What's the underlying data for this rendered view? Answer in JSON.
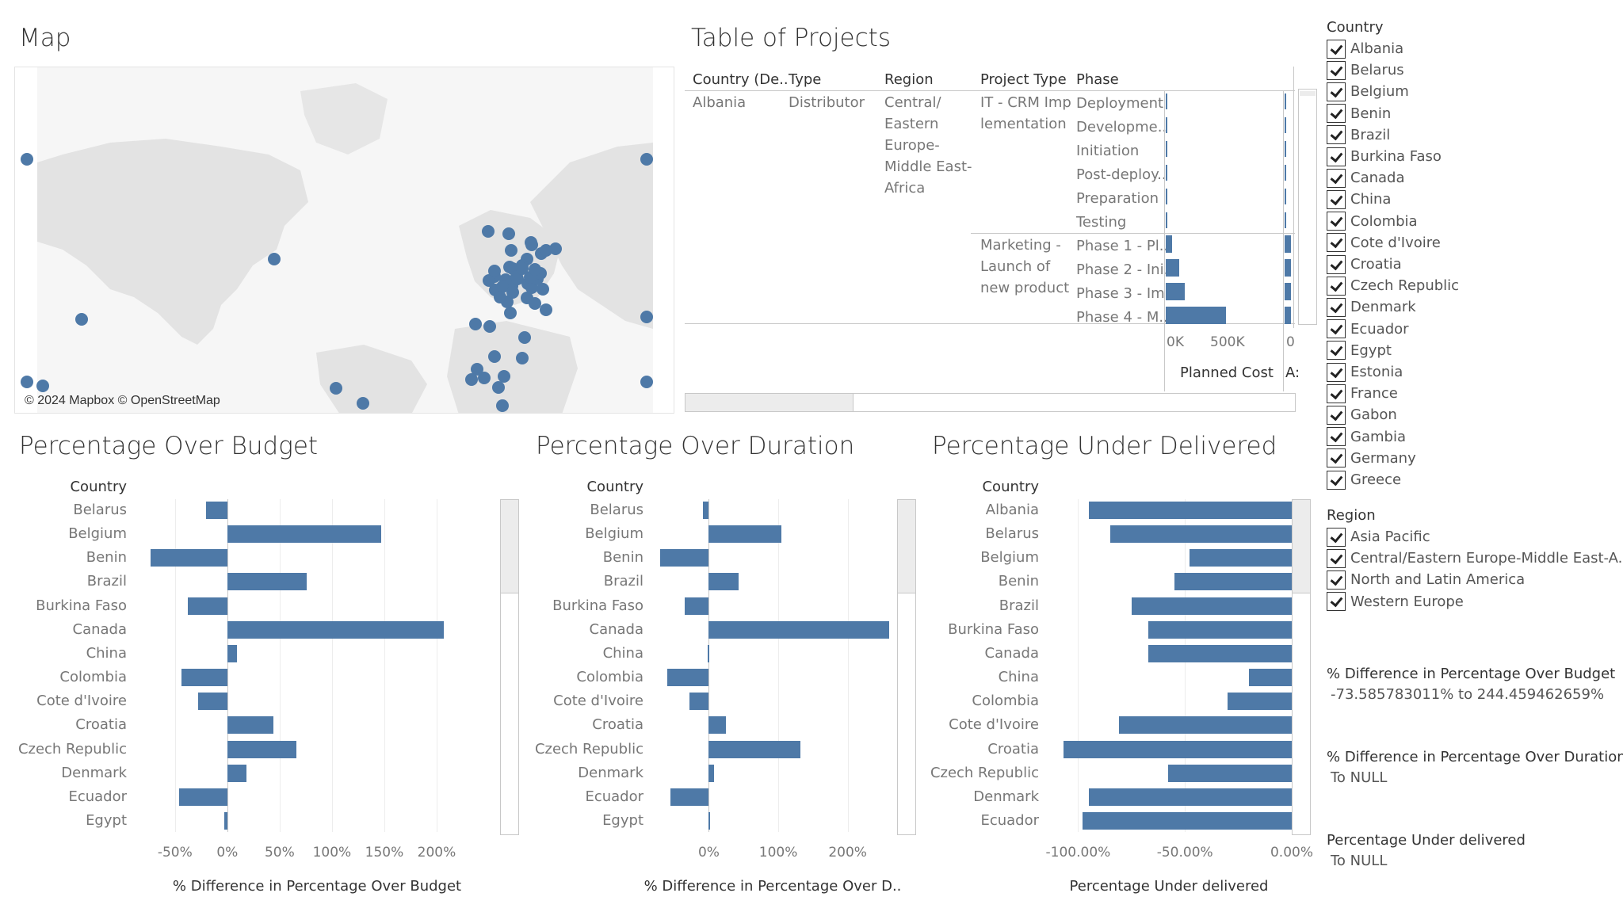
{
  "map": {
    "title": "Map",
    "attribution": "© 2024 Mapbox © OpenStreetMap",
    "point_color": "#4e79a7"
  },
  "table": {
    "title": "Table of Projects",
    "headers": [
      "Country (De..",
      "Type",
      "Region",
      "Project Type",
      "Phase"
    ],
    "country": "Albania",
    "type": "Distributor",
    "region_lines": [
      "Central/",
      "Eastern",
      "Europe-",
      "Middle East-",
      "Africa"
    ],
    "project_types": [
      {
        "lines": [
          "IT -  CRM Imp",
          "lementation"
        ],
        "phases": [
          "Deployment",
          "Developme..",
          "Initiation",
          "Post-deploy..",
          "Preparation",
          "Testing"
        ]
      },
      {
        "lines": [
          "Marketing -",
          "Launch of",
          "new product"
        ],
        "phases": [
          "Phase 1 - Pl..",
          "Phase 2 - Ini..",
          "Phase 3 - Im..",
          "Phase 4 - M.."
        ]
      }
    ],
    "planned_cost_values": [
      5000,
      5000,
      5000,
      5000,
      5000,
      5000,
      30000,
      60000,
      85000,
      270000
    ],
    "axis_ticks": [
      "0K",
      "500K"
    ],
    "axis_title": "Planned Cost",
    "second_axis_tick": "0",
    "second_axis_title": "A:"
  },
  "filters": {
    "country_title": "Country",
    "countries": [
      "Albania",
      "Belarus",
      "Belgium",
      "Benin",
      "Brazil",
      "Burkina Faso",
      "Canada",
      "China",
      "Colombia",
      "Cote d'Ivoire",
      "Croatia",
      "Czech Republic",
      "Denmark",
      "Ecuador",
      "Egypt",
      "Estonia",
      "France",
      "Gabon",
      "Gambia",
      "Germany",
      "Greece"
    ],
    "region_title": "Region",
    "regions": [
      "Asia Pacific",
      "Central/Eastern Europe-Middle East-A..",
      "North and Latin America",
      "Western Europe"
    ],
    "budget_title": "% Difference in Percentage Over Budget",
    "budget_value": "-73.585783011% to 244.459462659%",
    "duration_title": "% Difference in Percentage Over Duration",
    "duration_value": "To NULL",
    "under_title": "Percentage Under delivered",
    "under_value": "To NULL"
  },
  "chart_data": [
    {
      "type": "bar",
      "title": "Percentage Over Budget",
      "category_header": "Country",
      "categories": [
        "Belarus",
        "Belgium",
        "Benin",
        "Brazil",
        "Burkina Faso",
        "Canada",
        "China",
        "Colombia",
        "Cote d'Ivoire",
        "Croatia",
        "Czech Republic",
        "Denmark",
        "Ecuador",
        "Egypt"
      ],
      "values": [
        -20,
        147,
        -73,
        76,
        -38,
        207,
        9,
        -44,
        -28,
        44,
        66,
        18,
        -46,
        -3
      ],
      "ticks": [
        -50,
        0,
        50,
        100,
        150,
        200
      ],
      "tick_labels": [
        "-50%",
        "0%",
        "50%",
        "100%",
        "150%",
        "200%"
      ],
      "xlim": [
        -90,
        250
      ],
      "xlabel": "% Difference in Percentage Over Budget"
    },
    {
      "type": "bar",
      "title": "Percentage Over Duration",
      "category_header": "Country",
      "categories": [
        "Belarus",
        "Belgium",
        "Benin",
        "Brazil",
        "Burkina Faso",
        "Canada",
        "China",
        "Colombia",
        "Cote d'Ivoire",
        "Croatia",
        "Czech Republic",
        "Denmark",
        "Ecuador",
        "Egypt"
      ],
      "values": [
        -8,
        105,
        -70,
        43,
        -35,
        260,
        -2,
        -60,
        -28,
        25,
        132,
        7,
        -55,
        2
      ],
      "ticks": [
        0,
        100,
        200
      ],
      "tick_labels": [
        "0%",
        "100%",
        "200%"
      ],
      "xlim": [
        -85,
        270
      ],
      "xlabel": "% Difference in Percentage Over D.."
    },
    {
      "type": "bar",
      "title": "Percentage Under Delivered",
      "category_header": "Country",
      "categories": [
        "Albania",
        "Belarus",
        "Belgium",
        "Benin",
        "Brazil",
        "Burkina Faso",
        "Canada",
        "China",
        "Colombia",
        "Cote d'Ivoire",
        "Croatia",
        "Czech Republic",
        "Denmark",
        "Ecuador"
      ],
      "values": [
        -95,
        -85,
        -48,
        -55,
        -75,
        -67,
        -67,
        -20,
        -30,
        -81,
        -107,
        -58,
        -95,
        -98
      ],
      "ticks": [
        -100,
        -50,
        0
      ],
      "tick_labels": [
        "-100.00%",
        "-50.00%",
        "0.00%"
      ],
      "xlim": [
        -115,
        0
      ],
      "xlabel": "Percentage Under delivered"
    }
  ]
}
